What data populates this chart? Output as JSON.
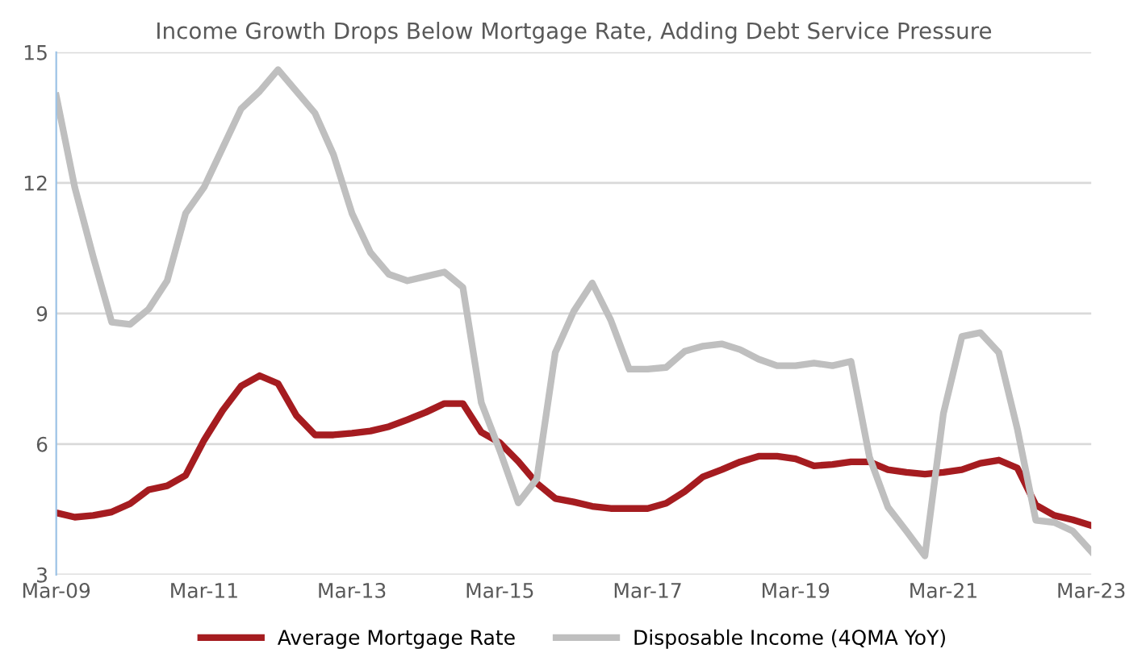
{
  "chart_data": {
    "type": "line",
    "title": "Income Growth Drops Below Mortgage Rate, Adding Debt Service Pressure",
    "categories": [
      "Mar-09",
      null,
      null,
      null,
      null,
      null,
      null,
      null,
      "Mar-11",
      null,
      null,
      null,
      null,
      null,
      null,
      null,
      "Mar-13",
      null,
      null,
      null,
      null,
      null,
      null,
      null,
      "Mar-15",
      null,
      null,
      null,
      null,
      null,
      null,
      null,
      "Mar-17",
      null,
      null,
      null,
      null,
      null,
      null,
      null,
      "Mar-19",
      null,
      null,
      null,
      null,
      null,
      null,
      null,
      "Mar-21",
      null,
      null,
      null,
      null,
      null,
      null,
      null,
      "Mar-23"
    ],
    "series": [
      {
        "name": "Average Mortgage Rate",
        "color": "#a51c20",
        "values": [
          4.42,
          4.32,
          4.36,
          4.44,
          4.63,
          4.95,
          5.04,
          5.28,
          6.09,
          6.77,
          7.33,
          7.57,
          7.39,
          6.65,
          6.21,
          6.21,
          6.25,
          6.3,
          6.4,
          6.56,
          6.73,
          6.93,
          6.93,
          6.27,
          6.03,
          5.6,
          5.1,
          4.75,
          4.67,
          4.57,
          4.52,
          4.52,
          4.52,
          4.64,
          4.91,
          5.25,
          5.41,
          5.59,
          5.72,
          5.72,
          5.66,
          5.5,
          5.53,
          5.59,
          5.59,
          5.41,
          5.35,
          5.31,
          5.35,
          5.41,
          5.56,
          5.63,
          5.45,
          4.6,
          4.36,
          4.26,
          4.13
        ]
      },
      {
        "name": "Disposable Income (4QMA YoY)",
        "color": "#bfbfbf",
        "values": [
          14.0,
          11.9,
          10.3,
          8.8,
          8.75,
          9.1,
          9.75,
          11.3,
          11.9,
          12.8,
          13.7,
          14.1,
          14.6,
          14.1,
          13.6,
          12.65,
          11.3,
          10.4,
          9.9,
          9.75,
          9.85,
          9.95,
          9.6,
          6.95,
          5.85,
          4.65,
          5.2,
          8.1,
          9.05,
          9.7,
          8.85,
          7.72,
          7.72,
          7.76,
          8.13,
          8.25,
          8.3,
          8.17,
          7.95,
          7.8,
          7.8,
          7.86,
          7.8,
          7.9,
          5.7,
          4.55,
          4.0,
          3.43,
          6.7,
          8.47,
          8.56,
          8.1,
          6.35,
          4.25,
          4.2,
          4.0,
          3.53
        ]
      }
    ],
    "ylim": [
      3,
      15
    ],
    "yticks": [
      3,
      6,
      9,
      12,
      15
    ],
    "grid": "y",
    "legend": "bottom",
    "marker": "none",
    "line_style": "solid"
  }
}
